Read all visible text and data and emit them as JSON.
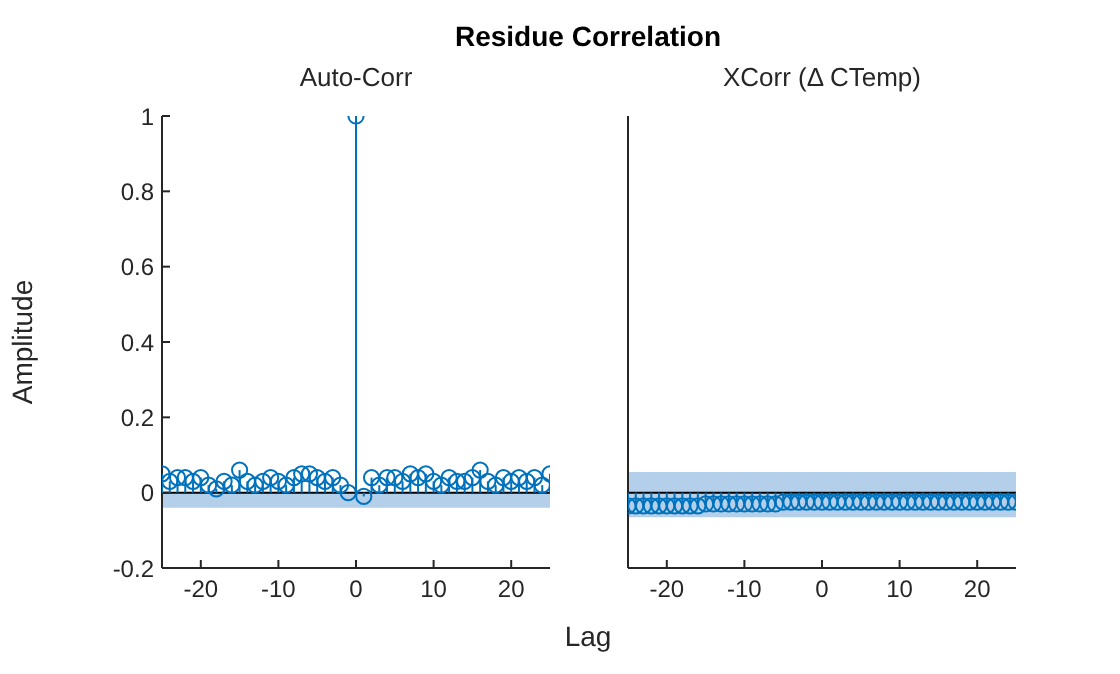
{
  "chart_data": [
    {
      "type": "lollipop",
      "title": "Residue Correlation",
      "subtitle": "Auto-Corr",
      "xlabel": "Lag",
      "ylabel": "Amplitude",
      "x": [
        -25,
        -24,
        -23,
        -22,
        -21,
        -20,
        -19,
        -18,
        -17,
        -16,
        -15,
        -14,
        -13,
        -12,
        -11,
        -10,
        -9,
        -8,
        -7,
        -6,
        -5,
        -4,
        -3,
        -2,
        -1,
        0,
        1,
        2,
        3,
        4,
        5,
        6,
        7,
        8,
        9,
        10,
        11,
        12,
        13,
        14,
        15,
        16,
        17,
        18,
        19,
        20,
        21,
        22,
        23,
        24,
        25
      ],
      "series": [
        {
          "color": "#0072bd",
          "values": [
            0.05,
            0.03,
            0.04,
            0.04,
            0.03,
            0.04,
            0.02,
            0.01,
            0.03,
            0.02,
            0.06,
            0.03,
            0.02,
            0.03,
            0.04,
            0.03,
            0.02,
            0.04,
            0.05,
            0.05,
            0.04,
            0.03,
            0.04,
            0.02,
            0.0,
            1.0,
            -0.01,
            0.04,
            0.02,
            0.04,
            0.04,
            0.03,
            0.05,
            0.04,
            0.05,
            0.03,
            0.02,
            0.04,
            0.03,
            0.03,
            0.04,
            0.06,
            0.03,
            0.02,
            0.04,
            0.03,
            0.04,
            0.03,
            0.04,
            0.02,
            0.05
          ]
        }
      ],
      "bands": [
        {
          "axis": "y",
          "from": -0.04,
          "to": 0,
          "color": "#b3cfe9"
        }
      ],
      "ref_lines": [
        {
          "axis": "y",
          "value": 0,
          "color": "#000000"
        }
      ],
      "marker": "circle",
      "xlim": [
        -25,
        25
      ],
      "xticks": [
        -20,
        -10,
        0,
        10,
        20
      ],
      "ylim": [
        -0.2,
        1
      ],
      "yticks": [
        -0.2,
        0,
        0.2,
        0.4,
        0.6,
        0.8,
        1
      ],
      "grid": false
    },
    {
      "type": "lollipop",
      "subtitle": "XCorr (Δ CTemp)",
      "x": [
        -25,
        -24,
        -23,
        -22,
        -21,
        -20,
        -19,
        -18,
        -17,
        -16,
        -15,
        -14,
        -13,
        -12,
        -11,
        -10,
        -9,
        -8,
        -7,
        -6,
        -5,
        -4,
        -3,
        -2,
        -1,
        0,
        1,
        2,
        3,
        4,
        5,
        6,
        7,
        8,
        9,
        10,
        11,
        12,
        13,
        14,
        15,
        16,
        17,
        18,
        19,
        20,
        21,
        22,
        23,
        24,
        25
      ],
      "series": [
        {
          "color": "#0072bd",
          "values": [
            -0.035,
            -0.035,
            -0.035,
            -0.035,
            -0.035,
            -0.035,
            -0.035,
            -0.035,
            -0.035,
            -0.035,
            -0.03,
            -0.03,
            -0.03,
            -0.03,
            -0.03,
            -0.03,
            -0.03,
            -0.03,
            -0.03,
            -0.03,
            -0.025,
            -0.025,
            -0.025,
            -0.025,
            -0.025,
            -0.025,
            -0.025,
            -0.025,
            -0.025,
            -0.025,
            -0.025,
            -0.025,
            -0.025,
            -0.025,
            -0.025,
            -0.025,
            -0.025,
            -0.025,
            -0.025,
            -0.025,
            -0.025,
            -0.025,
            -0.025,
            -0.025,
            -0.025,
            -0.025,
            -0.025,
            -0.025,
            -0.025,
            -0.025,
            -0.025
          ]
        }
      ],
      "bands": [
        {
          "axis": "y",
          "from": -0.065,
          "to": 0.055,
          "color": "#b3cfe9"
        }
      ],
      "ref_lines": [
        {
          "axis": "y",
          "value": 0,
          "color": "#000000"
        }
      ],
      "marker": "circle",
      "xlim": [
        -25,
        25
      ],
      "xticks": [
        -20,
        -10,
        0,
        10,
        20
      ],
      "ylim": [
        -0.2,
        1
      ],
      "yticks": [
        -0.2,
        0,
        0.2,
        0.4,
        0.6,
        0.8,
        1
      ],
      "grid": false,
      "tick_labels": "x"
    }
  ]
}
